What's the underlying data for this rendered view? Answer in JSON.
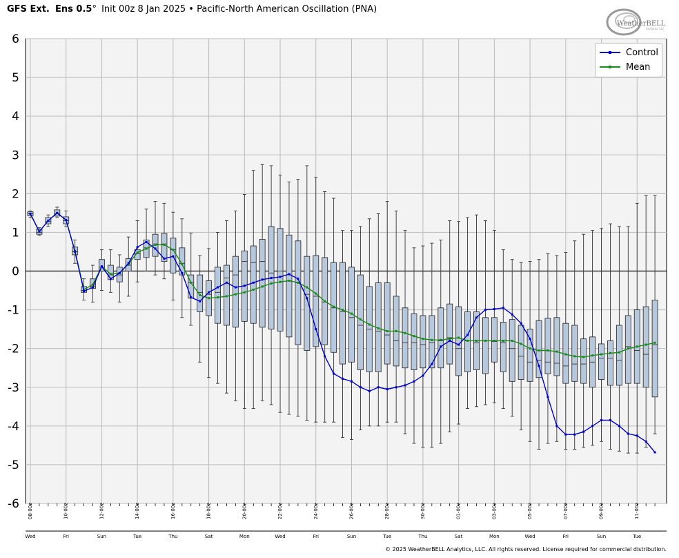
{
  "header": {
    "model": "GFS Ext.",
    "ens": "Ens 0.5",
    "degree": "°",
    "init": "Init 00z 8 Jan 2025",
    "sep": "•",
    "subject": "Pacific-North American Oscillation (PNA)"
  },
  "logo": {
    "text": "WeatherBELL",
    "subtext": "Analytics LLC"
  },
  "credit": "© 2025 WeatherBELL Analytics, LLC. All rights reserved. License required for commercial distribution.",
  "colors": {
    "control": "#0000cc",
    "mean": "#1a8a1a",
    "box_fill": "#b7c8dd",
    "plot_bg": "#f3f3f3",
    "grid": "#bbbbbb"
  },
  "chart_data": {
    "type": "box",
    "title": "Pacific-North American Oscillation (PNA)",
    "ylim": [
      -6,
      6
    ],
    "yticks": [
      6,
      5,
      4,
      3,
      2,
      1,
      0,
      -1,
      -2,
      -3,
      -4,
      -5,
      -6
    ],
    "xlabels": [
      "08-00z",
      "10-00z",
      "12-00z",
      "14-00z",
      "16-00z",
      "18-00z",
      "20-00z",
      "22-00z",
      "24-00z",
      "26-00z",
      "28-00z",
      "30-00z",
      "01-00z",
      "03-00z",
      "05-00z",
      "07-00z",
      "09-00z",
      "11-00z"
    ],
    "daylabels": [
      "Wed",
      "Fri",
      "Sun",
      "Tue",
      "Thu",
      "Sat",
      "Mon",
      "Wed",
      "Fri",
      "Sun",
      "Tue",
      "Thu",
      "Sat",
      "Mon",
      "Wed",
      "Fri",
      "Sun",
      "Tue"
    ],
    "legend": [
      "Control",
      "Mean"
    ],
    "control": [
      1.48,
      1.02,
      1.3,
      1.5,
      1.32,
      0.5,
      -0.52,
      -0.42,
      0.12,
      -0.2,
      -0.05,
      0.2,
      0.62,
      0.75,
      0.58,
      0.32,
      0.38,
      -0.05,
      -0.68,
      -0.78,
      -0.55,
      -0.42,
      -0.3,
      -0.42,
      -0.38,
      -0.3,
      -0.22,
      -0.18,
      -0.15,
      -0.08,
      -0.2,
      -0.7,
      -1.5,
      -2.2,
      -2.65,
      -2.78,
      -2.85,
      -3.0,
      -3.1,
      -3.0,
      -3.05,
      -3.0,
      -2.95,
      -2.85,
      -2.7,
      -2.4,
      -1.95,
      -1.8,
      -1.9,
      -1.65,
      -1.2,
      -1.0,
      -0.98,
      -0.95,
      -1.12,
      -1.35,
      -1.75,
      -2.45,
      -3.25,
      -4.0,
      -4.22,
      -4.22,
      -4.15,
      -4.0,
      -3.85,
      -3.85,
      -4.0,
      -4.2,
      -4.25,
      -4.4,
      -4.68
    ],
    "mean": [
      1.48,
      1.02,
      1.3,
      1.5,
      1.32,
      0.52,
      -0.48,
      -0.35,
      0.12,
      -0.08,
      -0.05,
      0.18,
      0.48,
      0.58,
      0.68,
      0.68,
      0.55,
      0.18,
      -0.3,
      -0.62,
      -0.7,
      -0.68,
      -0.65,
      -0.6,
      -0.55,
      -0.48,
      -0.4,
      -0.32,
      -0.28,
      -0.25,
      -0.3,
      -0.42,
      -0.58,
      -0.78,
      -0.92,
      -1.0,
      -1.1,
      -1.25,
      -1.38,
      -1.48,
      -1.55,
      -1.55,
      -1.6,
      -1.68,
      -1.75,
      -1.78,
      -1.78,
      -1.75,
      -1.72,
      -1.8,
      -1.8,
      -1.8,
      -1.8,
      -1.8,
      -1.8,
      -1.88,
      -2.0,
      -2.05,
      -2.05,
      -2.08,
      -2.15,
      -2.2,
      -2.22,
      -2.18,
      -2.15,
      -2.12,
      -2.1,
      -2.0,
      -1.95,
      -1.9,
      -1.85
    ],
    "q1": [
      1.43,
      0.95,
      1.22,
      1.42,
      1.22,
      0.42,
      -0.55,
      -0.45,
      0.0,
      -0.22,
      -0.28,
      0.0,
      0.3,
      0.35,
      0.38,
      0.25,
      -0.05,
      -0.1,
      -0.7,
      -1.05,
      -1.15,
      -1.35,
      -1.4,
      -1.45,
      -1.3,
      -1.35,
      -1.45,
      -1.5,
      -1.55,
      -1.7,
      -1.9,
      -2.05,
      -1.95,
      -1.9,
      -2.1,
      -2.4,
      -2.35,
      -2.55,
      -2.6,
      -2.6,
      -2.4,
      -2.45,
      -2.5,
      -2.55,
      -2.5,
      -2.5,
      -2.5,
      -2.4,
      -2.7,
      -2.6,
      -2.55,
      -2.65,
      -2.35,
      -2.6,
      -2.85,
      -2.8,
      -2.85,
      -2.75,
      -2.65,
      -2.7,
      -2.9,
      -2.85,
      -2.9,
      -3.0,
      -2.8,
      -2.95,
      -2.95,
      -2.9,
      -2.9,
      -3.0,
      -3.25
    ],
    "med": [
      1.48,
      1.0,
      1.28,
      1.48,
      1.3,
      0.5,
      -0.5,
      -0.4,
      0.1,
      -0.1,
      -0.1,
      0.15,
      0.45,
      0.6,
      0.7,
      0.7,
      0.55,
      0.2,
      -0.3,
      -0.55,
      -0.6,
      -0.55,
      -0.18,
      -0.1,
      0.25,
      0.22,
      0.25,
      -0.05,
      0.0,
      -0.25,
      -0.3,
      -0.6,
      -0.65,
      -0.8,
      -0.95,
      -1.05,
      -1.2,
      -1.4,
      -1.5,
      -1.55,
      -1.65,
      -1.8,
      -1.85,
      -1.85,
      -1.9,
      -1.85,
      -1.8,
      -1.72,
      -2.0,
      -1.8,
      -1.85,
      -1.8,
      -1.82,
      -1.85,
      -2.0,
      -2.2,
      -2.35,
      -2.3,
      -2.35,
      -2.38,
      -2.45,
      -2.4,
      -2.4,
      -2.35,
      -2.25,
      -2.25,
      -2.3,
      -1.95,
      -2.05,
      -2.15,
      -1.9
    ],
    "q3": [
      1.53,
      1.08,
      1.38,
      1.58,
      1.4,
      0.62,
      -0.4,
      -0.2,
      0.3,
      0.15,
      0.1,
      0.32,
      0.55,
      0.8,
      0.95,
      0.97,
      0.85,
      0.6,
      -0.1,
      -0.1,
      -0.25,
      0.1,
      0.15,
      0.38,
      0.52,
      0.65,
      0.82,
      1.15,
      1.1,
      0.93,
      0.78,
      0.38,
      0.4,
      0.35,
      0.22,
      0.22,
      0.1,
      -0.1,
      -0.4,
      -0.3,
      -0.3,
      -0.65,
      -0.95,
      -1.1,
      -1.15,
      -1.15,
      -0.95,
      -0.85,
      -0.92,
      -1.05,
      -1.05,
      -1.2,
      -1.2,
      -1.32,
      -1.25,
      -1.4,
      -1.5,
      -1.28,
      -1.22,
      -1.2,
      -1.35,
      -1.4,
      -1.75,
      -1.7,
      -1.88,
      -1.8,
      -1.4,
      -1.15,
      -1.0,
      -0.92,
      -0.75
    ],
    "wlo": [
      1.38,
      0.92,
      1.15,
      1.38,
      1.15,
      0.2,
      -0.75,
      -0.8,
      -0.5,
      -0.55,
      -0.8,
      -0.65,
      -0.28,
      0.0,
      -0.1,
      -0.2,
      -0.75,
      -1.2,
      -1.4,
      -2.35,
      -2.75,
      -2.9,
      -3.15,
      -3.35,
      -3.55,
      -3.55,
      -3.35,
      -3.45,
      -3.65,
      -3.7,
      -3.75,
      -3.85,
      -3.9,
      -3.9,
      -3.9,
      -4.3,
      -4.35,
      -4.1,
      -4.0,
      -4.0,
      -3.9,
      -3.9,
      -4.2,
      -4.45,
      -4.55,
      -4.55,
      -4.45,
      -4.15,
      -3.95,
      -3.55,
      -3.5,
      -3.45,
      -3.4,
      -3.55,
      -3.75,
      -4.1,
      -4.4,
      -4.6,
      -4.45,
      -4.4,
      -4.6,
      -4.6,
      -4.55,
      -4.5,
      -4.4,
      -4.6,
      -4.65,
      -4.7,
      -4.7,
      -4.55,
      -4.2
    ],
    "whi": [
      1.55,
      1.12,
      1.45,
      1.65,
      1.55,
      0.8,
      -0.2,
      0.15,
      0.55,
      0.55,
      0.42,
      0.88,
      1.3,
      1.6,
      1.8,
      1.75,
      1.52,
      1.35,
      0.98,
      0.4,
      0.58,
      1.0,
      1.3,
      1.55,
      1.98,
      2.6,
      2.75,
      2.72,
      2.48,
      2.3,
      2.37,
      2.72,
      2.42,
      2.05,
      1.88,
      1.05,
      1.05,
      1.15,
      1.35,
      1.48,
      1.8,
      1.55,
      1.05,
      0.6,
      0.65,
      0.72,
      0.8,
      1.3,
      1.28,
      1.38,
      1.45,
      1.3,
      1.05,
      0.55,
      0.3,
      0.22,
      0.25,
      0.3,
      0.45,
      0.4,
      0.48,
      0.78,
      0.95,
      1.05,
      1.1,
      1.22,
      1.15,
      1.15,
      1.75,
      1.95,
      1.95
    ]
  }
}
